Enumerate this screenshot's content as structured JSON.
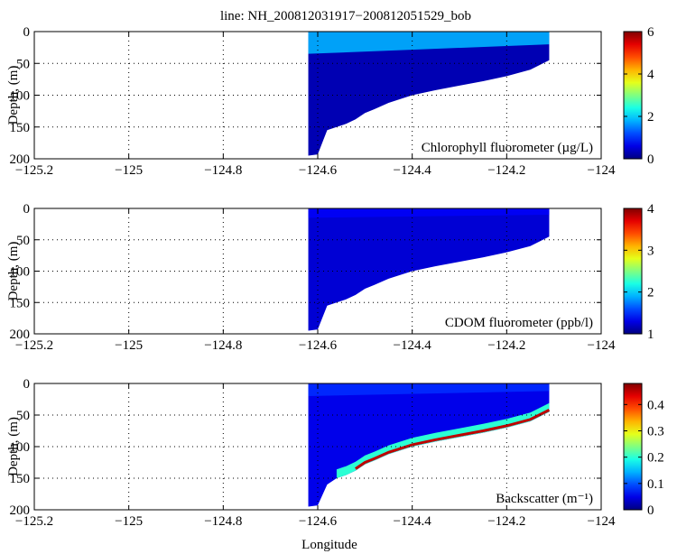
{
  "figure": {
    "title": "line: NH_200812031917−200812051529_bob",
    "xlabel": "Longitude"
  },
  "chart_data": [
    {
      "type": "heatmap",
      "title": "line: NH_200812031917−200812051529_bob",
      "ylabel": "Depth, (m)",
      "xlabel": "",
      "annotation": "Chlorophyll fluorometer (µg/L)",
      "xlim": [
        -125.2,
        -124.0
      ],
      "ylim": [
        200,
        0
      ],
      "xticks": [
        -125.2,
        -125,
        -124.8,
        -124.6,
        -124.4,
        -124.2,
        -124
      ],
      "xtick_labels": [
        "−125.2",
        "−125",
        "−124.8",
        "−124.6",
        "−124.4",
        "−124.2",
        "−124"
      ],
      "yticks": [
        0,
        50,
        100,
        150,
        200
      ],
      "grid": true,
      "colorbar": {
        "min": 0,
        "max": 6,
        "ticks": [
          0,
          2,
          4,
          6
        ],
        "tick_labels": [
          "0",
          "2",
          "4",
          "6"
        ],
        "colormap": "jet"
      },
      "data_extent": {
        "lon_min": -124.62,
        "lon_max": -124.11
      },
      "bottom_profile": [
        [
          -124.62,
          195
        ],
        [
          -124.6,
          193
        ],
        [
          -124.58,
          155
        ],
        [
          -124.56,
          150
        ],
        [
          -124.54,
          145
        ],
        [
          -124.52,
          138
        ],
        [
          -124.5,
          128
        ],
        [
          -124.48,
          122
        ],
        [
          -124.45,
          112
        ],
        [
          -124.4,
          100
        ],
        [
          -124.35,
          92
        ],
        [
          -124.3,
          85
        ],
        [
          -124.25,
          78
        ],
        [
          -124.2,
          70
        ],
        [
          -124.15,
          60
        ],
        [
          -124.11,
          45
        ]
      ],
      "surface_layer": {
        "depth_top": 0,
        "depth_bottom_west": 35,
        "depth_bottom_east": 20,
        "value": 1.8
      },
      "deep_layer_value": 0.3,
      "features": []
    },
    {
      "type": "heatmap",
      "ylabel": "Depth, (m)",
      "xlabel": "",
      "annotation": "CDOM fluorometer (ppb/l)",
      "xlim": [
        -125.2,
        -124.0
      ],
      "ylim": [
        200,
        0
      ],
      "xticks": [
        -125.2,
        -125,
        -124.8,
        -124.6,
        -124.4,
        -124.2,
        -124
      ],
      "xtick_labels": [
        "−125.2",
        "−125",
        "−124.8",
        "−124.6",
        "−124.4",
        "−124.2",
        "−124"
      ],
      "yticks": [
        0,
        50,
        100,
        150,
        200
      ],
      "grid": true,
      "colorbar": {
        "min": 1,
        "max": 4,
        "ticks": [
          1,
          2,
          3,
          4
        ],
        "tick_labels": [
          "1",
          "2",
          "3",
          "4"
        ],
        "colormap": "jet"
      },
      "data_extent": {
        "lon_min": -124.62,
        "lon_max": -124.11
      },
      "bottom_profile": [
        [
          -124.62,
          195
        ],
        [
          -124.6,
          193
        ],
        [
          -124.58,
          155
        ],
        [
          -124.56,
          150
        ],
        [
          -124.54,
          145
        ],
        [
          -124.52,
          138
        ],
        [
          -124.5,
          128
        ],
        [
          -124.48,
          122
        ],
        [
          -124.45,
          112
        ],
        [
          -124.4,
          100
        ],
        [
          -124.35,
          92
        ],
        [
          -124.3,
          85
        ],
        [
          -124.25,
          78
        ],
        [
          -124.2,
          70
        ],
        [
          -124.15,
          60
        ],
        [
          -124.11,
          45
        ]
      ],
      "surface_layer": {
        "depth_top": 0,
        "depth_bottom_west": 15,
        "depth_bottom_east": 10,
        "value": 1.35
      },
      "deep_layer_value": 1.25,
      "features": []
    },
    {
      "type": "heatmap",
      "ylabel": "Depth, (m)",
      "xlabel": "Longitude",
      "annotation": "Backscatter (m⁻¹)",
      "xlim": [
        -125.2,
        -124.0
      ],
      "ylim": [
        200,
        0
      ],
      "xticks": [
        -125.2,
        -125,
        -124.8,
        -124.6,
        -124.4,
        -124.2,
        -124
      ],
      "xtick_labels": [
        "−125.2",
        "−125",
        "−124.8",
        "−124.6",
        "−124.4",
        "−124.2",
        "−124"
      ],
      "yticks": [
        0,
        50,
        100,
        150,
        200
      ],
      "grid": true,
      "colorbar": {
        "min": 0,
        "max": 0.48,
        "ticks": [
          0,
          0.1,
          0.2,
          0.3,
          0.4
        ],
        "tick_labels": [
          "0",
          "0.1",
          "0.2",
          "0.3",
          "0.4"
        ],
        "colormap": "jet"
      },
      "data_extent": {
        "lon_min": -124.62,
        "lon_max": -124.11
      },
      "bottom_profile": [
        [
          -124.62,
          195
        ],
        [
          -124.6,
          193
        ],
        [
          -124.58,
          160
        ],
        [
          -124.56,
          150
        ],
        [
          -124.54,
          145
        ],
        [
          -124.52,
          138
        ],
        [
          -124.5,
          128
        ],
        [
          -124.48,
          122
        ],
        [
          -124.45,
          112
        ],
        [
          -124.4,
          100
        ],
        [
          -124.35,
          92
        ],
        [
          -124.3,
          85
        ],
        [
          -124.25,
          78
        ],
        [
          -124.2,
          70
        ],
        [
          -124.15,
          60
        ],
        [
          -124.11,
          45
        ]
      ],
      "surface_layer": {
        "depth_top": 0,
        "depth_bottom_west": 20,
        "depth_bottom_east": 12,
        "value": 0.08
      },
      "deep_layer_value": 0.05,
      "features": [
        {
          "kind": "bottom_nepheloid_layer",
          "thickness_m": 14,
          "value_top": 0.2,
          "value_bottom": 0.45
        }
      ]
    }
  ]
}
